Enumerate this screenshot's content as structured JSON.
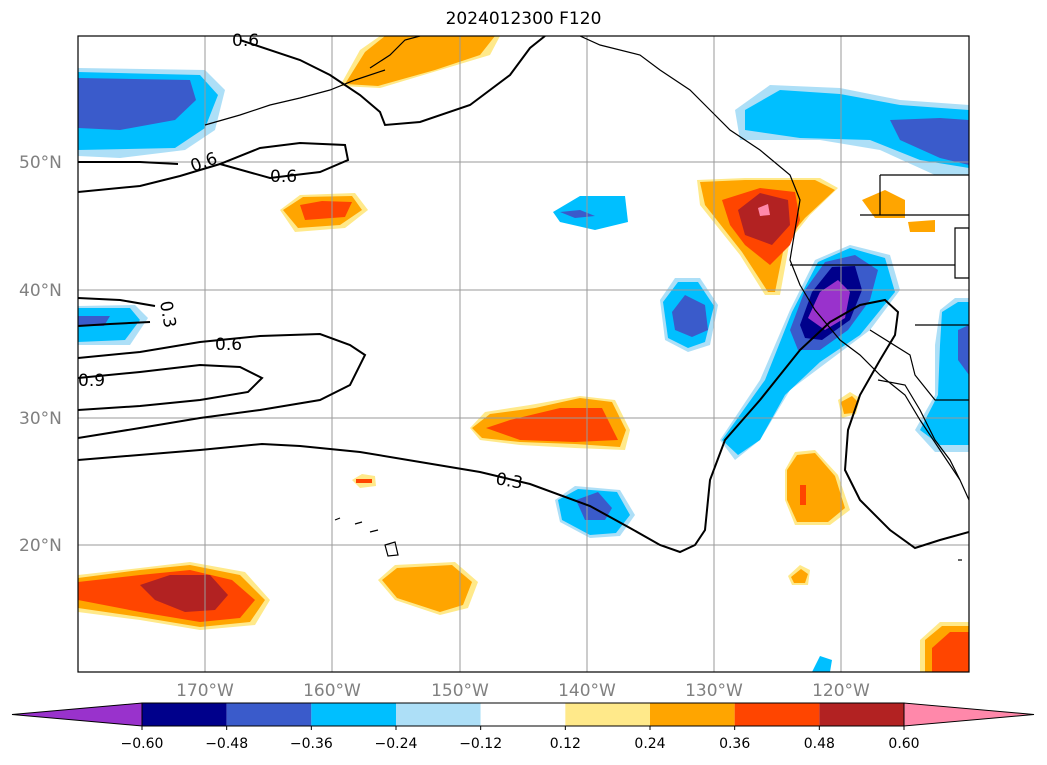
{
  "title": "2024012300 F120",
  "latitude_labels": [
    "50°N",
    "40°N",
    "30°N",
    "20°N"
  ],
  "longitude_labels": [
    "170°W",
    "160°W",
    "150°W",
    "140°W",
    "130°W",
    "120°W"
  ],
  "contour_labels": [
    "0.6",
    "0.6",
    "0.6",
    "0.3",
    "0.9",
    "0.3",
    "0.6"
  ],
  "colorbar": {
    "tick_labels": [
      "−0.60",
      "−0.48",
      "−0.36",
      "−0.24",
      "−0.12",
      "0.12",
      "0.24",
      "0.36",
      "0.48",
      "0.60"
    ],
    "colors": [
      "#9932CC",
      "#00008B",
      "#3A5BCB",
      "#00BFFF",
      "#ADDFF7",
      "#FFFFFF",
      "#FFE98A",
      "#FFA500",
      "#FF4500",
      "#B22222",
      "#FF88AA"
    ]
  },
  "colors": {
    "purple": "#9932CC",
    "navy": "#00008B",
    "blue": "#3A5BCB",
    "sky": "#00BFFF",
    "light_blue": "#ADDFF7",
    "yellow": "#FFE98A",
    "orange": "#FFA500",
    "red_orange": "#FF4500",
    "dark_red": "#B22222",
    "pink": "#FF88AA"
  }
}
